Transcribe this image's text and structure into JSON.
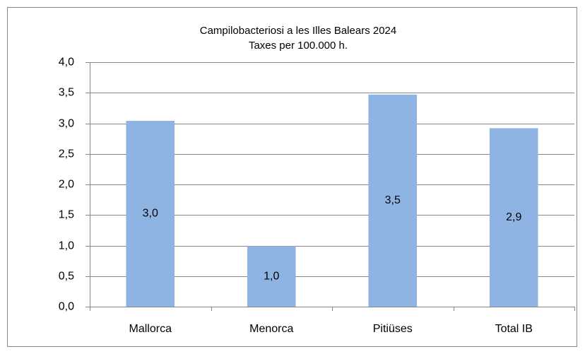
{
  "chart_data": {
    "type": "bar",
    "title": "Campilobacteriosi a les Illes Balears 2024",
    "subtitle": "Taxes per 100.000 h.",
    "categories": [
      "Mallorca",
      "Menorca",
      "Pitiüses",
      "Total IB"
    ],
    "values": [
      3.04,
      0.99,
      3.47,
      2.92
    ],
    "value_labels": [
      "3,0",
      "1,0",
      "3,5",
      "2,9"
    ],
    "color": "#8eb4e3",
    "ylim": [
      0,
      4
    ],
    "yticks": [
      {
        "value": 0,
        "label": "0,0"
      },
      {
        "value": 0.5,
        "label": "0,5"
      },
      {
        "value": 1,
        "label": "1,0"
      },
      {
        "value": 1.5,
        "label": "1,5"
      },
      {
        "value": 2,
        "label": "2,0"
      },
      {
        "value": 2.5,
        "label": "2,5"
      },
      {
        "value": 3,
        "label": "3,0"
      },
      {
        "value": 3.5,
        "label": "3,5"
      },
      {
        "value": 4,
        "label": "4,0"
      }
    ],
    "grid": true
  }
}
